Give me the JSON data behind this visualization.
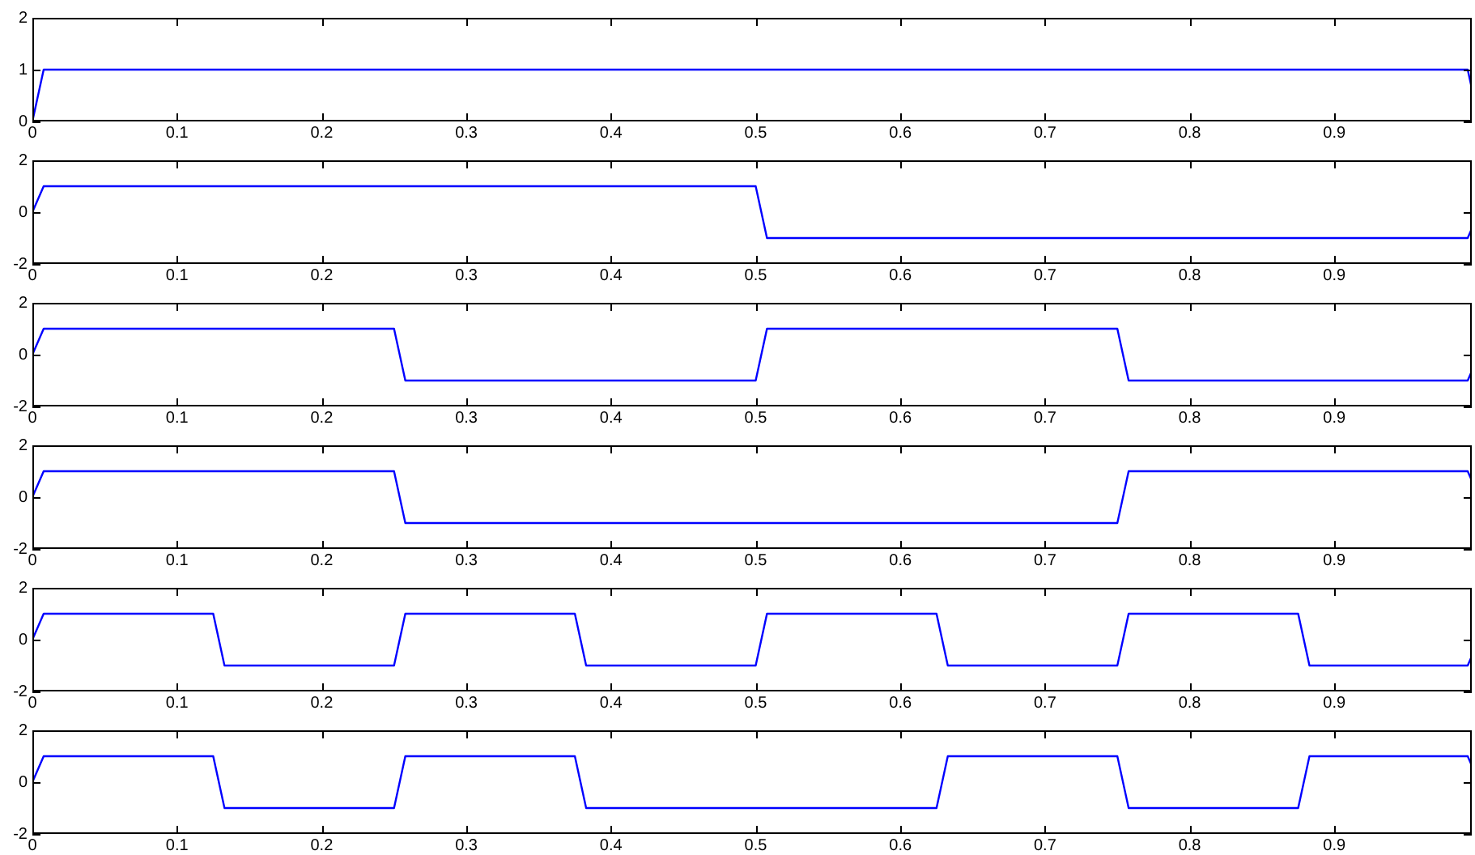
{
  "chart_data": [
    {
      "type": "line",
      "color": "#0000ff",
      "grid": false,
      "xlim": [
        0,
        0.995
      ],
      "xticks": [
        0,
        0.1,
        0.2,
        0.3,
        0.4,
        0.5,
        0.6,
        0.7,
        0.8,
        0.9
      ],
      "ylim": [
        0,
        2
      ],
      "yticks": [
        0,
        1,
        2
      ],
      "x": [
        0,
        0.0078,
        0.9922,
        0.995
      ],
      "values": [
        0,
        1,
        1,
        0.64
      ]
    },
    {
      "type": "line",
      "color": "#0000ff",
      "grid": false,
      "xlim": [
        0,
        0.995
      ],
      "xticks": [
        0,
        0.1,
        0.2,
        0.3,
        0.4,
        0.5,
        0.6,
        0.7,
        0.8,
        0.9
      ],
      "ylim": [
        -2,
        2
      ],
      "yticks": [
        -2,
        0,
        2
      ],
      "x": [
        0,
        0.0078,
        0.5,
        0.5078,
        0.9922,
        0.995
      ],
      "values": [
        0,
        1,
        1,
        -1,
        -1,
        -0.64
      ]
    },
    {
      "type": "line",
      "color": "#0000ff",
      "grid": false,
      "xlim": [
        0,
        0.995
      ],
      "xticks": [
        0,
        0.1,
        0.2,
        0.3,
        0.4,
        0.5,
        0.6,
        0.7,
        0.8,
        0.9
      ],
      "ylim": [
        -2,
        2
      ],
      "yticks": [
        -2,
        0,
        2
      ],
      "x": [
        0,
        0.0078,
        0.25,
        0.2578,
        0.5,
        0.5078,
        0.75,
        0.7578,
        0.9922,
        0.995
      ],
      "values": [
        0,
        1,
        1,
        -1,
        -1,
        1,
        1,
        -1,
        -1,
        -0.64
      ]
    },
    {
      "type": "line",
      "color": "#0000ff",
      "grid": false,
      "xlim": [
        0,
        0.995
      ],
      "xticks": [
        0,
        0.1,
        0.2,
        0.3,
        0.4,
        0.5,
        0.6,
        0.7,
        0.8,
        0.9
      ],
      "ylim": [
        -2,
        2
      ],
      "yticks": [
        -2,
        0,
        2
      ],
      "x": [
        0,
        0.0078,
        0.25,
        0.2578,
        0.75,
        0.7578,
        0.9922,
        0.995
      ],
      "values": [
        0,
        1,
        1,
        -1,
        -1,
        1,
        1,
        0.64
      ]
    },
    {
      "type": "line",
      "color": "#0000ff",
      "grid": false,
      "xlim": [
        0,
        0.995
      ],
      "xticks": [
        0,
        0.1,
        0.2,
        0.3,
        0.4,
        0.5,
        0.6,
        0.7,
        0.8,
        0.9
      ],
      "ylim": [
        -2,
        2
      ],
      "yticks": [
        -2,
        0,
        2
      ],
      "x": [
        0,
        0.0078,
        0.125,
        0.1328,
        0.25,
        0.2578,
        0.375,
        0.3828,
        0.5,
        0.5078,
        0.625,
        0.6328,
        0.75,
        0.7578,
        0.875,
        0.8828,
        0.9922,
        0.995
      ],
      "values": [
        0,
        1,
        1,
        -1,
        -1,
        1,
        1,
        -1,
        -1,
        1,
        1,
        -1,
        -1,
        1,
        1,
        -1,
        -1,
        -0.64
      ]
    },
    {
      "type": "line",
      "color": "#0000ff",
      "grid": false,
      "xlim": [
        0,
        0.995
      ],
      "xticks": [
        0,
        0.1,
        0.2,
        0.3,
        0.4,
        0.5,
        0.6,
        0.7,
        0.8,
        0.9
      ],
      "ylim": [
        -2,
        2
      ],
      "yticks": [
        -2,
        0,
        2
      ],
      "x": [
        0,
        0.0078,
        0.125,
        0.1328,
        0.25,
        0.2578,
        0.375,
        0.3828,
        0.625,
        0.6328,
        0.75,
        0.7578,
        0.875,
        0.8828,
        0.9922,
        0.995
      ],
      "values": [
        0,
        1,
        1,
        -1,
        -1,
        1,
        1,
        -1,
        -1,
        1,
        1,
        -1,
        -1,
        1,
        1,
        0.64
      ]
    }
  ]
}
